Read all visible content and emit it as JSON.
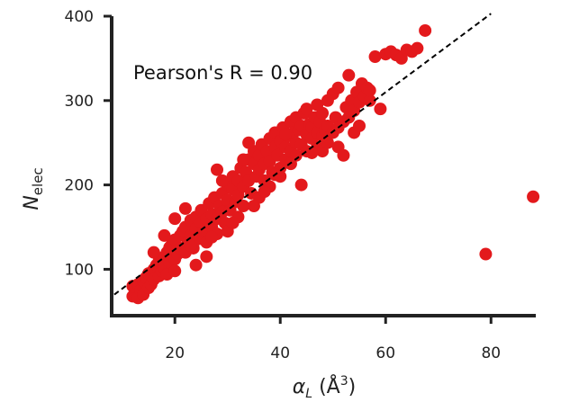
{
  "chart_data": {
    "type": "scatter",
    "annotation": "Pearson's R = 0.90",
    "xlabel": {
      "symbol": "α",
      "subscript": "L",
      "unit": " (Å",
      "unit_sup": "3",
      "unit_close": ")"
    },
    "ylabel": {
      "symbol": "N",
      "subscript": "elec"
    },
    "xlim": [
      8,
      88.5
    ],
    "ylim": [
      45,
      400
    ],
    "xticks": [
      20,
      40,
      60,
      80
    ],
    "yticks": [
      100,
      200,
      300,
      400
    ],
    "grid": false,
    "legend": "none",
    "reference_line": {
      "style": "dashed",
      "color": "#000000",
      "x": [
        8.5,
        80
      ],
      "y": [
        70,
        403
      ]
    },
    "series": [
      {
        "color": "#e3191c",
        "points": [
          [
            12,
            68
          ],
          [
            12.5,
            72
          ],
          [
            13,
            66
          ],
          [
            12,
            80
          ],
          [
            13,
            82
          ],
          [
            13.5,
            75
          ],
          [
            14,
            70
          ],
          [
            14,
            86
          ],
          [
            14.5,
            90
          ],
          [
            15,
            78
          ],
          [
            15,
            95
          ],
          [
            15.5,
            82
          ],
          [
            16,
            100
          ],
          [
            16,
            88
          ],
          [
            16.5,
            105
          ],
          [
            17,
            92
          ],
          [
            17,
            110
          ],
          [
            17.5,
            98
          ],
          [
            18,
            115
          ],
          [
            18,
            102
          ],
          [
            18.5,
            120
          ],
          [
            18.5,
            94
          ],
          [
            19,
            108
          ],
          [
            19,
            126
          ],
          [
            19.5,
            130
          ],
          [
            20,
            112
          ],
          [
            20,
            135
          ],
          [
            20.5,
            118
          ],
          [
            21,
            140
          ],
          [
            21,
            125
          ],
          [
            21.5,
            145
          ],
          [
            22,
            120
          ],
          [
            22,
            150
          ],
          [
            22.5,
            132
          ],
          [
            23,
            158
          ],
          [
            23,
            140
          ],
          [
            23.5,
            125
          ],
          [
            24,
            148
          ],
          [
            24,
            162
          ],
          [
            24.5,
            136
          ],
          [
            25,
            155
          ],
          [
            25,
            170
          ],
          [
            25.5,
            145
          ],
          [
            26,
            160
          ],
          [
            26,
            132
          ],
          [
            26.5,
            178
          ],
          [
            27,
            150
          ],
          [
            27,
            165
          ],
          [
            27.5,
            185
          ],
          [
            28,
            160
          ],
          [
            28,
            142
          ],
          [
            28.5,
            175
          ],
          [
            29,
            190
          ],
          [
            29,
            168
          ],
          [
            29.5,
            155
          ],
          [
            30,
            182
          ],
          [
            30,
            200
          ],
          [
            30.5,
            170
          ],
          [
            31,
            195
          ],
          [
            31,
            210
          ],
          [
            31.5,
            180
          ],
          [
            32,
            205
          ],
          [
            32,
            188
          ],
          [
            32.5,
            220
          ],
          [
            33,
            198
          ],
          [
            33,
            175
          ],
          [
            33.5,
            215
          ],
          [
            34,
            230
          ],
          [
            34,
            205
          ],
          [
            34.5,
            190
          ],
          [
            35,
            225
          ],
          [
            35,
            240
          ],
          [
            35.5,
            210
          ],
          [
            36,
            235
          ],
          [
            36,
            218
          ],
          [
            36.5,
            248
          ],
          [
            37,
            225
          ],
          [
            37,
            205
          ],
          [
            37.5,
            240
          ],
          [
            38,
            255
          ],
          [
            38,
            228
          ],
          [
            38.5,
            215
          ],
          [
            39,
            245
          ],
          [
            39,
            262
          ],
          [
            39.5,
            235
          ],
          [
            40,
            252
          ],
          [
            40,
            220
          ],
          [
            40.5,
            268
          ],
          [
            41,
            245
          ],
          [
            41,
            230
          ],
          [
            41.5,
            258
          ],
          [
            42,
            275
          ],
          [
            42,
            240
          ],
          [
            42.5,
            262
          ],
          [
            43,
            250
          ],
          [
            43,
            280
          ],
          [
            43.5,
            265
          ],
          [
            44,
            248
          ],
          [
            44,
            270
          ],
          [
            44.5,
            285
          ],
          [
            45,
            260
          ],
          [
            45,
            240
          ],
          [
            45.5,
            272
          ],
          [
            46,
            268
          ],
          [
            46,
            255
          ],
          [
            46.5,
            280
          ],
          [
            47,
            262
          ],
          [
            47,
            245
          ],
          [
            47.5,
            275
          ],
          [
            48,
            258
          ],
          [
            48,
            240
          ],
          [
            48.5,
            265
          ],
          [
            49,
            250
          ],
          [
            49,
            270
          ],
          [
            50,
            262
          ],
          [
            50.5,
            280
          ],
          [
            51,
            268
          ],
          [
            51,
            245
          ],
          [
            52,
            275
          ],
          [
            52.5,
            292
          ],
          [
            53,
            280
          ],
          [
            53.5,
            300
          ],
          [
            54,
            288
          ],
          [
            54.5,
            310
          ],
          [
            55,
            298
          ],
          [
            55.5,
            320
          ],
          [
            56,
            305
          ],
          [
            56.5,
            315
          ],
          [
            57,
            300
          ],
          [
            58,
            352
          ],
          [
            59,
            290
          ],
          [
            60,
            355
          ],
          [
            61,
            358
          ],
          [
            62,
            354
          ],
          [
            63,
            350
          ],
          [
            64,
            360
          ],
          [
            65,
            358
          ],
          [
            66,
            362
          ],
          [
            67.5,
            383
          ],
          [
            16,
            120
          ],
          [
            18,
            140
          ],
          [
            20,
            160
          ],
          [
            22,
            172
          ],
          [
            24,
            105
          ],
          [
            26,
            115
          ],
          [
            28,
            218
          ],
          [
            30,
            145
          ],
          [
            32,
            162
          ],
          [
            34,
            250
          ],
          [
            36,
            185
          ],
          [
            38,
            198
          ],
          [
            40,
            210
          ],
          [
            42,
            225
          ],
          [
            44,
            200
          ],
          [
            46,
            238
          ],
          [
            48,
            285
          ],
          [
            50,
            308
          ],
          [
            52,
            235
          ],
          [
            54,
            262
          ],
          [
            20,
            98
          ],
          [
            23,
            128
          ],
          [
            27,
            138
          ],
          [
            29,
            205
          ],
          [
            31,
            155
          ],
          [
            33,
            230
          ],
          [
            35,
            175
          ],
          [
            37,
            192
          ],
          [
            39,
            212
          ],
          [
            41,
            260
          ],
          [
            43,
            235
          ],
          [
            45,
            290
          ],
          [
            47,
            295
          ],
          [
            49,
            300
          ],
          [
            51,
            315
          ],
          [
            53,
            330
          ],
          [
            55,
            270
          ],
          [
            57,
            312
          ],
          [
            79,
            118
          ],
          [
            88,
            186
          ]
        ]
      }
    ]
  }
}
